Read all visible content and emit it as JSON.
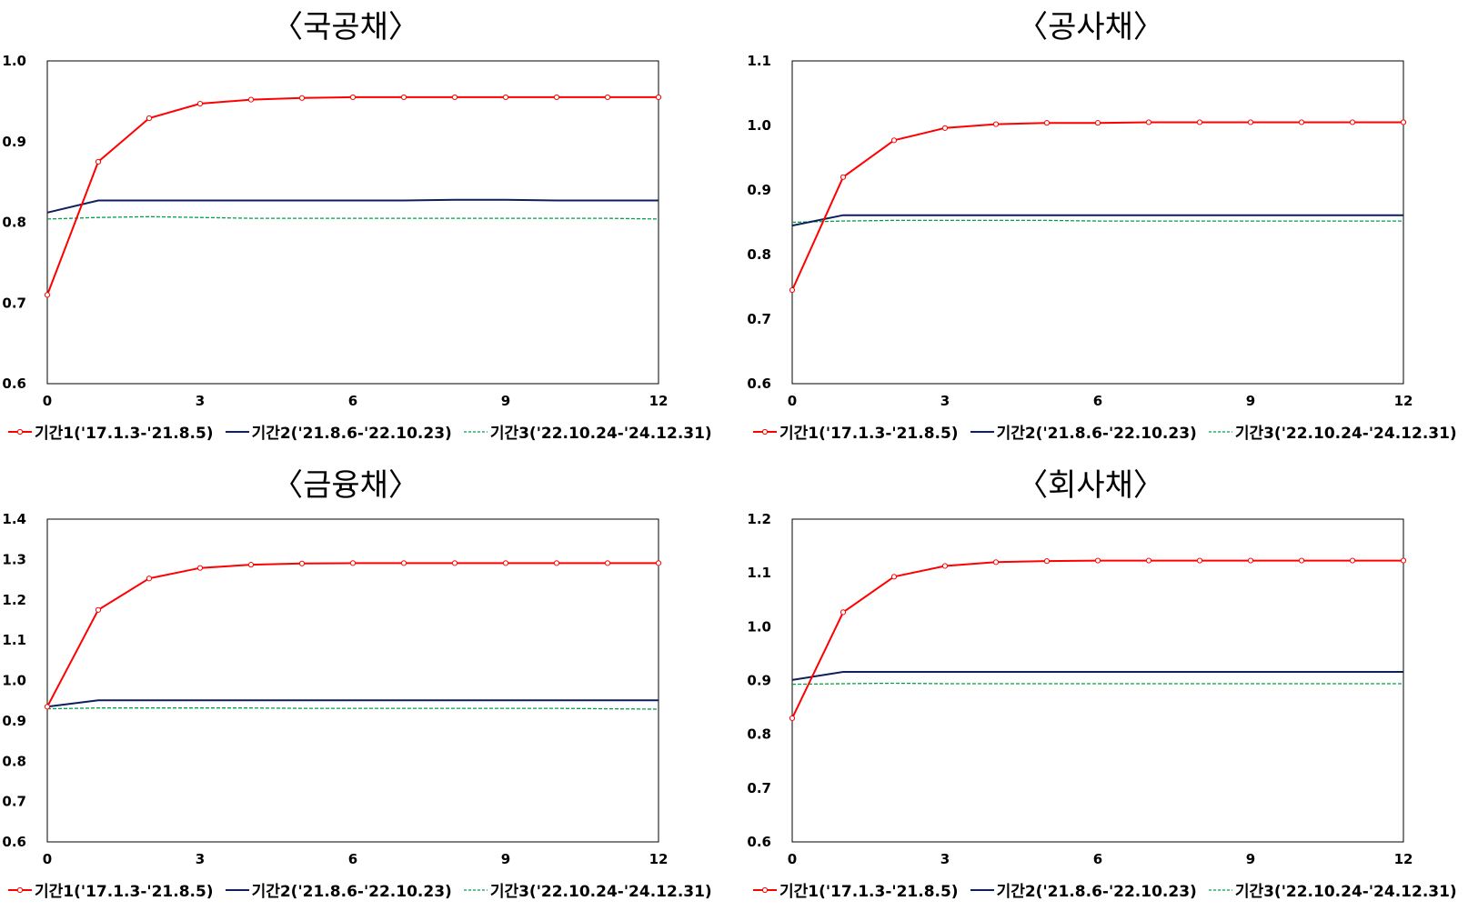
{
  "chart_data": [
    {
      "type": "line",
      "title": "〈국공채〉",
      "xlim": [
        0,
        12
      ],
      "xticks": [
        0,
        3,
        6,
        9,
        12
      ],
      "ylim": [
        0.6,
        1.0
      ],
      "yticks": [
        "0.6",
        "0.7",
        "0.8",
        "0.9",
        "1.0"
      ],
      "x": [
        0,
        1,
        2,
        3,
        4,
        5,
        6,
        7,
        8,
        9,
        10,
        11,
        12
      ],
      "series": [
        {
          "name": "기간1('17.1.3-'21.8.5)",
          "color": "#ff0000",
          "style": "solid-marker",
          "values": [
            0.71,
            0.875,
            0.929,
            0.947,
            0.952,
            0.954,
            0.955,
            0.955,
            0.955,
            0.955,
            0.955,
            0.955,
            0.955
          ]
        },
        {
          "name": "기간2('21.8.6-'22.10.23)",
          "color": "#0d1f5c",
          "style": "solid",
          "values": [
            0.812,
            0.827,
            0.827,
            0.827,
            0.827,
            0.827,
            0.827,
            0.827,
            0.828,
            0.828,
            0.827,
            0.827,
            0.827
          ]
        },
        {
          "name": "기간3('22.10.24-'24.12.31)",
          "color": "#00a04a",
          "style": "dashed",
          "values": [
            0.804,
            0.806,
            0.807,
            0.806,
            0.805,
            0.805,
            0.805,
            0.805,
            0.805,
            0.805,
            0.805,
            0.805,
            0.804
          ]
        }
      ]
    },
    {
      "type": "line",
      "title": "〈공사채〉",
      "xlim": [
        0,
        12
      ],
      "xticks": [
        0,
        3,
        6,
        9,
        12
      ],
      "ylim": [
        0.6,
        1.1
      ],
      "yticks": [
        "0.6",
        "0.7",
        "0.8",
        "0.9",
        "1.0",
        "1.1"
      ],
      "x": [
        0,
        1,
        2,
        3,
        4,
        5,
        6,
        7,
        8,
        9,
        10,
        11,
        12
      ],
      "series": [
        {
          "name": "기간1('17.1.3-'21.8.5)",
          "color": "#ff0000",
          "style": "solid-marker",
          "values": [
            0.745,
            0.92,
            0.977,
            0.996,
            1.002,
            1.004,
            1.004,
            1.005,
            1.005,
            1.005,
            1.005,
            1.005,
            1.005
          ]
        },
        {
          "name": "기간2('21.8.6-'22.10.23)",
          "color": "#0d1f5c",
          "style": "solid",
          "values": [
            0.845,
            0.861,
            0.861,
            0.861,
            0.861,
            0.861,
            0.861,
            0.861,
            0.861,
            0.861,
            0.861,
            0.861,
            0.861
          ]
        },
        {
          "name": "기간3('22.10.24-'24.12.31)",
          "color": "#00a04a",
          "style": "dashed",
          "values": [
            0.85,
            0.852,
            0.853,
            0.853,
            0.853,
            0.853,
            0.852,
            0.852,
            0.852,
            0.852,
            0.852,
            0.852,
            0.852
          ]
        }
      ]
    },
    {
      "type": "line",
      "title": "〈금융채〉",
      "xlim": [
        0,
        12
      ],
      "xticks": [
        0,
        3,
        6,
        9,
        12
      ],
      "ylim": [
        0.6,
        1.4
      ],
      "yticks": [
        "0.6",
        "0.7",
        "0.8",
        "0.9",
        "1.0",
        "1.1",
        "1.2",
        "1.3",
        "1.4"
      ],
      "x": [
        0,
        1,
        2,
        3,
        4,
        5,
        6,
        7,
        8,
        9,
        10,
        11,
        12
      ],
      "series": [
        {
          "name": "기간1('17.1.3-'21.8.5)",
          "color": "#ff0000",
          "style": "solid-marker",
          "values": [
            0.935,
            1.175,
            1.253,
            1.279,
            1.287,
            1.29,
            1.291,
            1.291,
            1.291,
            1.291,
            1.291,
            1.291,
            1.291
          ]
        },
        {
          "name": "기간2('21.8.6-'22.10.23)",
          "color": "#0d1f5c",
          "style": "solid",
          "values": [
            0.935,
            0.951,
            0.951,
            0.951,
            0.951,
            0.951,
            0.951,
            0.951,
            0.951,
            0.951,
            0.951,
            0.951,
            0.951
          ]
        },
        {
          "name": "기간3('22.10.24-'24.12.31)",
          "color": "#00a04a",
          "style": "dashed",
          "values": [
            0.93,
            0.932,
            0.932,
            0.932,
            0.932,
            0.931,
            0.931,
            0.931,
            0.931,
            0.931,
            0.931,
            0.93,
            0.929
          ]
        }
      ]
    },
    {
      "type": "line",
      "title": "〈회사채〉",
      "xlim": [
        0,
        12
      ],
      "xticks": [
        0,
        3,
        6,
        9,
        12
      ],
      "ylim": [
        0.6,
        1.2
      ],
      "yticks": [
        "0.6",
        "0.7",
        "0.8",
        "0.9",
        "1.0",
        "1.1",
        "1.2"
      ],
      "x": [
        0,
        1,
        2,
        3,
        4,
        5,
        6,
        7,
        8,
        9,
        10,
        11,
        12
      ],
      "series": [
        {
          "name": "기간1('17.1.3-'21.8.5)",
          "color": "#ff0000",
          "style": "solid-marker",
          "values": [
            0.83,
            1.027,
            1.093,
            1.113,
            1.12,
            1.122,
            1.123,
            1.123,
            1.123,
            1.123,
            1.123,
            1.123,
            1.123
          ]
        },
        {
          "name": "기간2('21.8.6-'22.10.23)",
          "color": "#0d1f5c",
          "style": "solid",
          "values": [
            0.901,
            0.916,
            0.916,
            0.916,
            0.916,
            0.916,
            0.916,
            0.916,
            0.916,
            0.916,
            0.916,
            0.916,
            0.916
          ]
        },
        {
          "name": "기간3('22.10.24-'24.12.31)",
          "color": "#00a04a",
          "style": "dashed",
          "values": [
            0.893,
            0.894,
            0.895,
            0.894,
            0.894,
            0.894,
            0.894,
            0.894,
            0.894,
            0.894,
            0.894,
            0.894,
            0.894
          ]
        }
      ]
    }
  ]
}
